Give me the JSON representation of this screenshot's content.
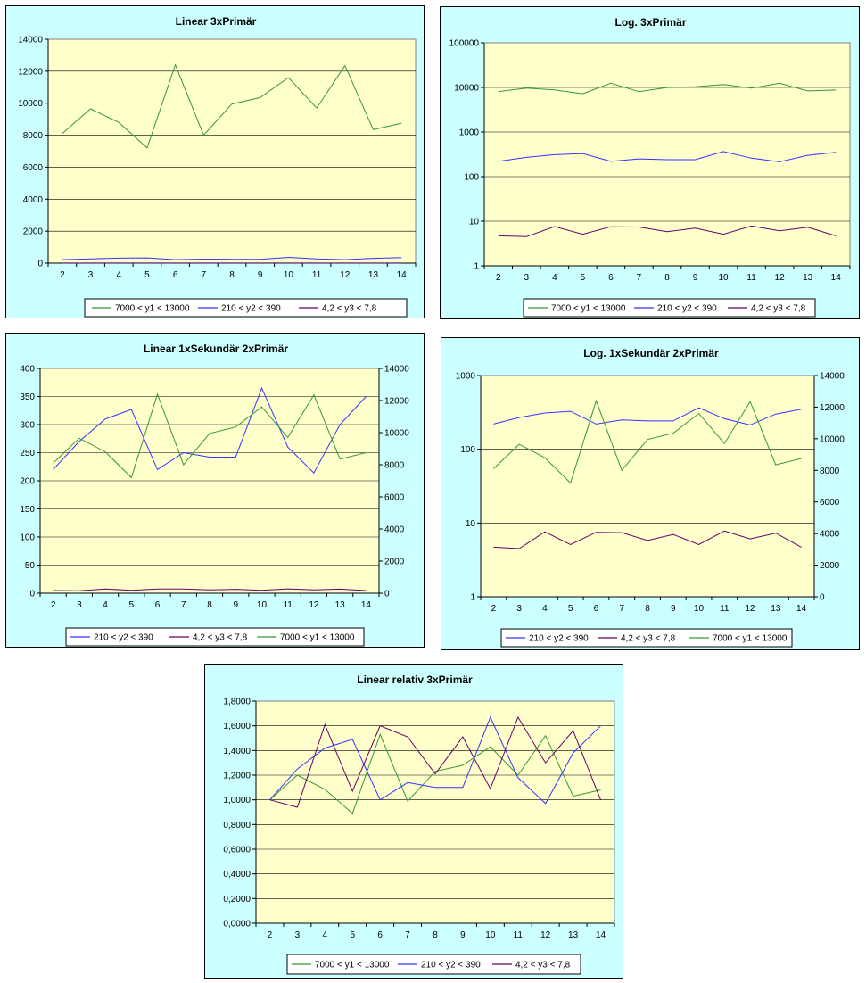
{
  "colors": {
    "panel_bg": "#ccffff",
    "plot_bg": "#ffffcc",
    "series_y1": "#339933",
    "series_y2": "#3333ff",
    "series_y3": "#660066"
  },
  "chart_data": [
    {
      "type": "line",
      "title": "Linear 3xPrimär",
      "x": [
        2,
        3,
        4,
        5,
        6,
        7,
        8,
        9,
        10,
        11,
        12,
        13,
        14
      ],
      "y_scale": "linear",
      "ylim": [
        0,
        14000
      ],
      "y_ticks": [
        "0",
        "2000",
        "4000",
        "6000",
        "8000",
        "10000",
        "12000",
        "14000"
      ],
      "legend_position": "bottom",
      "legend": [
        "7000 <  y1 < 13000",
        "210 <  y2 < 390",
        "4,2 <  y3 < 7,8"
      ],
      "series": [
        {
          "name": "7000 <  y1 < 13000",
          "color": "#339933",
          "values": [
            8100,
            9650,
            8800,
            7200,
            12400,
            8000,
            9950,
            10350,
            11600,
            9700,
            12350,
            8350,
            8750
          ]
        },
        {
          "name": "210 <  y2 < 390",
          "color": "#3333ff",
          "values": [
            220,
            270,
            310,
            330,
            220,
            250,
            240,
            240,
            365,
            260,
            215,
            300,
            350
          ]
        },
        {
          "name": "4,2 <  y3 < 7,8",
          "color": "#660066",
          "values": [
            4.7,
            4.5,
            7.6,
            5.1,
            7.5,
            7.4,
            5.8,
            7.0,
            5.1,
            7.8,
            6.1,
            7.3,
            4.7
          ]
        }
      ]
    },
    {
      "type": "line",
      "title": "Log. 3xPrimär",
      "x": [
        2,
        3,
        4,
        5,
        6,
        7,
        8,
        9,
        10,
        11,
        12,
        13,
        14
      ],
      "y_scale": "log",
      "ylim": [
        1,
        100000
      ],
      "y_ticks": [
        "1",
        "10",
        "100",
        "1000",
        "10000",
        "100000"
      ],
      "legend_position": "bottom",
      "legend": [
        "7000 <  y1 < 13000",
        "210 <  y2 < 390",
        "4,2 <  y3 < 7,8"
      ],
      "series": [
        {
          "name": "7000 <  y1 < 13000",
          "color": "#339933",
          "values": [
            8100,
            9650,
            8800,
            7200,
            12400,
            8000,
            9950,
            10350,
            11600,
            9700,
            12350,
            8350,
            8750
          ]
        },
        {
          "name": "210 <  y2 < 390",
          "color": "#3333ff",
          "values": [
            220,
            270,
            310,
            330,
            220,
            250,
            240,
            240,
            365,
            260,
            215,
            300,
            350
          ]
        },
        {
          "name": "4,2 <  y3 < 7,8",
          "color": "#660066",
          "values": [
            4.7,
            4.5,
            7.6,
            5.1,
            7.5,
            7.4,
            5.8,
            7.0,
            5.1,
            7.8,
            6.1,
            7.3,
            4.7
          ]
        }
      ]
    },
    {
      "type": "line",
      "title": "Linear 1xSekundär 2xPrimär",
      "x": [
        2,
        3,
        4,
        5,
        6,
        7,
        8,
        9,
        10,
        11,
        12,
        13,
        14
      ],
      "y_scale": "linear",
      "ylim": [
        0,
        400
      ],
      "y_ticks": [
        "0",
        "50",
        "100",
        "150",
        "200",
        "250",
        "300",
        "350",
        "400"
      ],
      "y2_scale": "linear",
      "y2lim": [
        0,
        14000
      ],
      "y2_ticks": [
        "0",
        "2000",
        "4000",
        "6000",
        "8000",
        "10000",
        "12000",
        "14000"
      ],
      "legend_position": "bottom",
      "legend": [
        "210 <  y2 < 390",
        "4,2 <  y3 < 7,8",
        "7000 <  y1 < 13000"
      ],
      "series": [
        {
          "name": "210 <  y2 < 390",
          "color": "#3333ff",
          "axis": "left",
          "values": [
            220,
            270,
            310,
            327,
            220,
            250,
            242,
            242,
            365,
            260,
            214,
            300,
            350
          ]
        },
        {
          "name": "4,2 <  y3 < 7,8",
          "color": "#660066",
          "axis": "left",
          "values": [
            4.7,
            4.5,
            7.6,
            5.1,
            7.5,
            7.4,
            5.8,
            7.0,
            5.1,
            7.8,
            6.1,
            7.3,
            4.7
          ]
        },
        {
          "name": "7000 <  y1 < 13000",
          "color": "#339933",
          "axis": "right",
          "values": [
            8100,
            9650,
            8800,
            7200,
            12400,
            8000,
            9950,
            10350,
            11600,
            9700,
            12350,
            8350,
            8750
          ]
        }
      ]
    },
    {
      "type": "line",
      "title": "Log. 1xSekundär 2xPrimär",
      "x": [
        2,
        3,
        4,
        5,
        6,
        7,
        8,
        9,
        10,
        11,
        12,
        13,
        14
      ],
      "y_scale": "log",
      "ylim": [
        1,
        1000
      ],
      "y_ticks": [
        "1",
        "10",
        "100",
        "1000"
      ],
      "y2_scale": "linear",
      "y2lim": [
        0,
        14000
      ],
      "y2_ticks": [
        "0",
        "2000",
        "4000",
        "6000",
        "8000",
        "10000",
        "12000",
        "14000"
      ],
      "legend_position": "bottom",
      "legend": [
        "210 <  y2 < 390",
        "4,2 <  y3 < 7,8",
        "7000 <  y1 < 13000"
      ],
      "series": [
        {
          "name": "210 <  y2 < 390",
          "color": "#3333ff",
          "axis": "left",
          "values": [
            220,
            270,
            310,
            327,
            220,
            250,
            242,
            242,
            365,
            260,
            214,
            300,
            350
          ]
        },
        {
          "name": "4,2 <  y3 < 7,8",
          "color": "#660066",
          "axis": "left",
          "values": [
            4.7,
            4.5,
            7.6,
            5.1,
            7.5,
            7.4,
            5.8,
            7.0,
            5.1,
            7.8,
            6.1,
            7.3,
            4.7
          ]
        },
        {
          "name": "7000 <  y1 < 13000",
          "color": "#339933",
          "axis": "right",
          "values": [
            8100,
            9650,
            8800,
            7200,
            12400,
            8000,
            9950,
            10350,
            11600,
            9700,
            12350,
            8350,
            8750
          ]
        }
      ]
    },
    {
      "type": "line",
      "title": "Linear relativ 3xPrimär",
      "x": [
        2,
        3,
        4,
        5,
        6,
        7,
        8,
        9,
        10,
        11,
        12,
        13,
        14
      ],
      "y_scale": "linear",
      "ylim": [
        0,
        1.8
      ],
      "y_ticks": [
        "0,0000",
        "0,2000",
        "0,4000",
        "0,6000",
        "0,8000",
        "1,0000",
        "1,2000",
        "1,4000",
        "1,6000",
        "1,8000"
      ],
      "legend_position": "bottom",
      "legend": [
        "7000 <  y1 < 13000",
        "210 <  y2 < 390",
        "4,2 <  y3 < 7,8"
      ],
      "series": [
        {
          "name": "7000 <  y1 < 13000",
          "color": "#339933",
          "values": [
            1.0,
            1.2,
            1.085,
            0.89,
            1.53,
            0.99,
            1.23,
            1.28,
            1.43,
            1.2,
            1.52,
            1.03,
            1.08
          ]
        },
        {
          "name": "210 <  y2 < 390",
          "color": "#3333ff",
          "values": [
            1.0,
            1.25,
            1.42,
            1.49,
            1.0,
            1.14,
            1.1,
            1.1,
            1.67,
            1.18,
            0.97,
            1.38,
            1.6
          ]
        },
        {
          "name": "4,2 <  y3 < 7,8",
          "color": "#660066",
          "values": [
            1.0,
            0.94,
            1.61,
            1.07,
            1.6,
            1.51,
            1.21,
            1.51,
            1.09,
            1.67,
            1.3,
            1.56,
            1.0
          ]
        }
      ]
    }
  ]
}
